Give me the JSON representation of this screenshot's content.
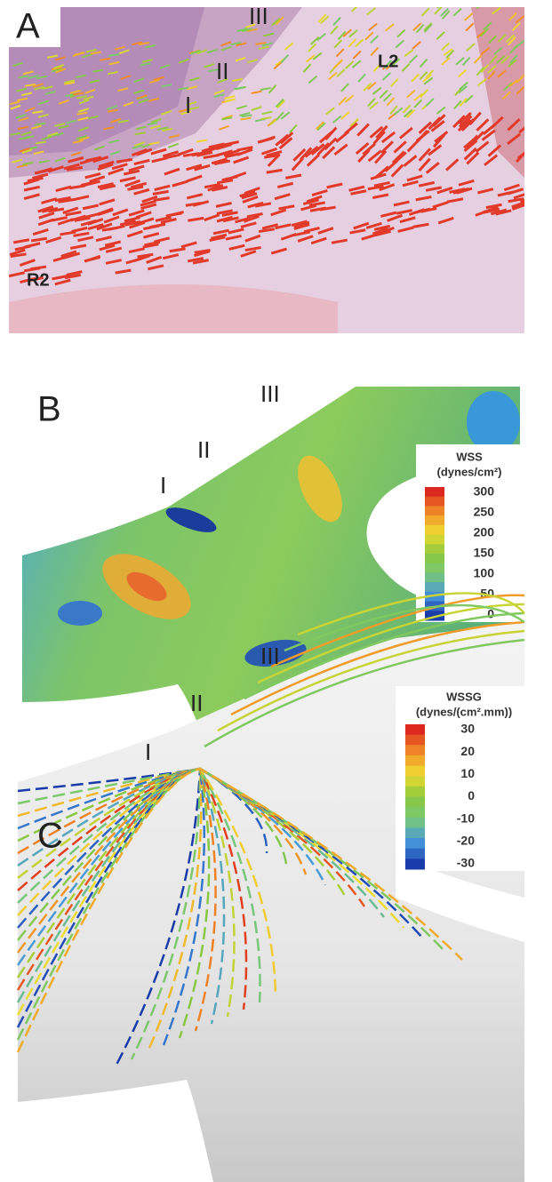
{
  "panels": [
    {
      "label": "A",
      "annotations": [
        "I",
        "II",
        "III",
        "L2",
        "R2"
      ]
    },
    {
      "label": "B",
      "annotations": [
        "I",
        "II",
        "III"
      ],
      "legend": {
        "title": "WSS",
        "unit": "(dynes/cm²)",
        "ticks": [
          300,
          250,
          200,
          150,
          100,
          50,
          0
        ]
      }
    },
    {
      "label": "C",
      "annotations": [
        "I",
        "II",
        "III"
      ],
      "legend": {
        "title": "WSSG",
        "unit": "(dynes/(cm².mm))",
        "ticks": [
          30,
          20,
          10,
          0,
          -10,
          -20,
          -30
        ]
      }
    }
  ]
}
